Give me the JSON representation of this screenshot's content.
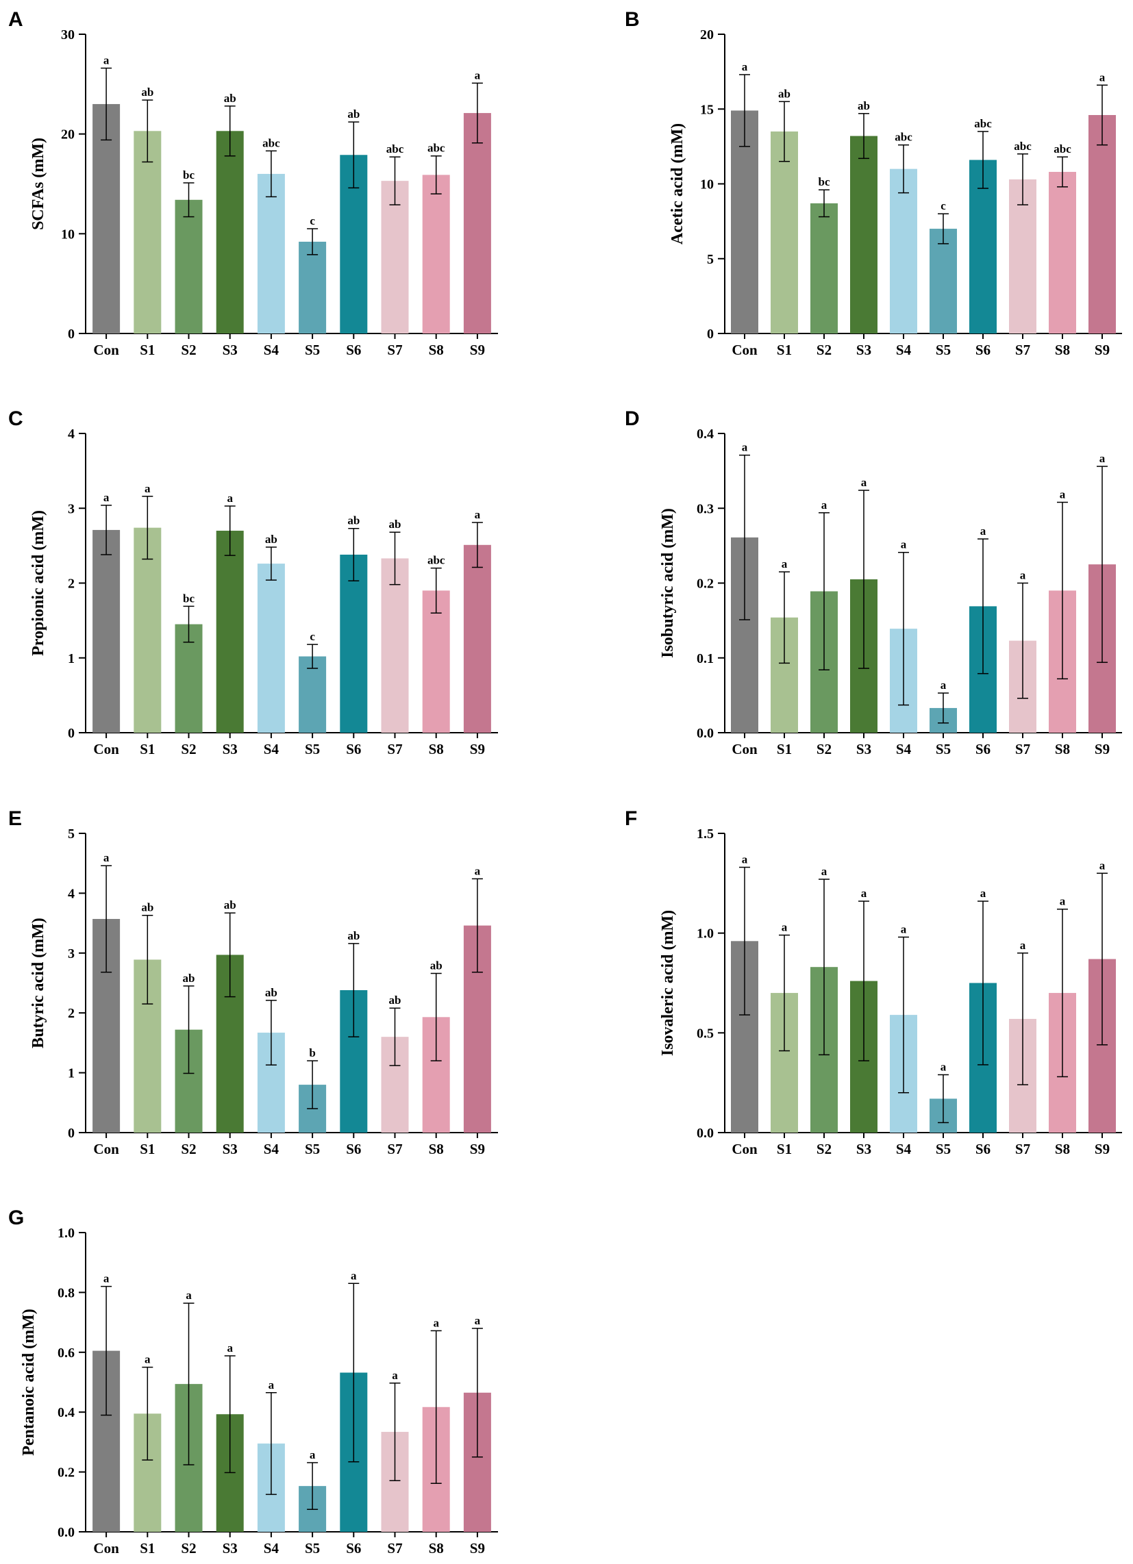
{
  "categories": [
    "Con",
    "S1",
    "S2",
    "S3",
    "S4",
    "S5",
    "S6",
    "S7",
    "S8",
    "S9"
  ],
  "colors": [
    "#7f7f7f",
    "#a8c191",
    "#6a9960",
    "#4a7a34",
    "#a5d4e5",
    "#5da5b3",
    "#138895",
    "#e6c4cb",
    "#e49fb1",
    "#c4778f"
  ],
  "chart_data": [
    {
      "panel": "A",
      "type": "bar",
      "title": "",
      "xlabel": "",
      "ylabel": "SCFAs (mM)",
      "ylim": [
        0,
        30
      ],
      "yticks": [
        "0",
        "10",
        "20",
        "30"
      ],
      "yticks_values": [
        0,
        10,
        20,
        30
      ],
      "values": [
        23.0,
        20.3,
        13.4,
        20.3,
        16.0,
        9.2,
        17.9,
        15.3,
        15.9,
        22.1
      ],
      "errors": [
        3.6,
        3.1,
        1.7,
        2.5,
        2.3,
        1.3,
        3.3,
        2.4,
        1.9,
        3.0
      ],
      "letters": [
        "a",
        "ab",
        "bc",
        "ab",
        "abc",
        "c",
        "ab",
        "abc",
        "abc",
        "a"
      ]
    },
    {
      "panel": "B",
      "type": "bar",
      "title": "",
      "xlabel": "",
      "ylabel": "Acetic acid (mM)",
      "ylim": [
        0,
        20
      ],
      "yticks": [
        "0",
        "5",
        "10",
        "15",
        "20"
      ],
      "yticks_values": [
        0,
        5,
        10,
        15,
        20
      ],
      "values": [
        14.9,
        13.5,
        8.7,
        13.2,
        11.0,
        7.0,
        11.6,
        10.3,
        10.8,
        14.6
      ],
      "errors": [
        2.4,
        2.0,
        0.9,
        1.5,
        1.6,
        1.0,
        1.9,
        1.7,
        1.0,
        2.0
      ],
      "letters": [
        "a",
        "ab",
        "bc",
        "ab",
        "abc",
        "c",
        "abc",
        "abc",
        "abc",
        "a"
      ]
    },
    {
      "panel": "C",
      "type": "bar",
      "title": "",
      "xlabel": "",
      "ylabel": "Propionic acid (mM)",
      "ylim": [
        0,
        4
      ],
      "yticks": [
        "0",
        "1",
        "2",
        "3",
        "4"
      ],
      "yticks_values": [
        0,
        1,
        2,
        3,
        4
      ],
      "values": [
        2.71,
        2.74,
        1.45,
        2.7,
        2.26,
        1.02,
        2.38,
        2.33,
        1.9,
        2.51
      ],
      "errors": [
        0.33,
        0.42,
        0.24,
        0.33,
        0.22,
        0.16,
        0.35,
        0.35,
        0.3,
        0.3
      ],
      "letters": [
        "a",
        "a",
        "bc",
        "a",
        "ab",
        "c",
        "ab",
        "ab",
        "abc",
        "a"
      ]
    },
    {
      "panel": "D",
      "type": "bar",
      "title": "",
      "xlabel": "",
      "ylabel": "Isobutyric acid (mM)",
      "ylim": [
        0,
        0.4
      ],
      "yticks": [
        "0.0",
        "0.1",
        "0.2",
        "0.3",
        "0.4"
      ],
      "yticks_values": [
        0,
        0.1,
        0.2,
        0.3,
        0.4
      ],
      "values": [
        0.261,
        0.154,
        0.189,
        0.205,
        0.139,
        0.033,
        0.169,
        0.123,
        0.19,
        0.225
      ],
      "errors": [
        0.11,
        0.061,
        0.105,
        0.119,
        0.102,
        0.02,
        0.09,
        0.077,
        0.118,
        0.131
      ],
      "letters": [
        "a",
        "a",
        "a",
        "a",
        "a",
        "a",
        "a",
        "a",
        "a",
        "a"
      ]
    },
    {
      "panel": "E",
      "type": "bar",
      "title": "",
      "xlabel": "",
      "ylabel": "Butyric acid (mM)",
      "ylim": [
        0,
        5
      ],
      "yticks": [
        "0",
        "1",
        "2",
        "3",
        "4",
        "5"
      ],
      "yticks_values": [
        0,
        1,
        2,
        3,
        4,
        5
      ],
      "values": [
        3.57,
        2.89,
        1.72,
        2.97,
        1.67,
        0.8,
        2.38,
        1.6,
        1.93,
        3.46
      ],
      "errors": [
        0.89,
        0.74,
        0.73,
        0.7,
        0.54,
        0.4,
        0.78,
        0.48,
        0.73,
        0.78
      ],
      "letters": [
        "a",
        "ab",
        "ab",
        "ab",
        "ab",
        "b",
        "ab",
        "ab",
        "ab",
        "a"
      ]
    },
    {
      "panel": "F",
      "type": "bar",
      "title": "",
      "xlabel": "",
      "ylabel": "Isovaleric acid (mM)",
      "ylim": [
        0,
        1.5
      ],
      "yticks": [
        "0.0",
        "0.5",
        "1.0",
        "1.5"
      ],
      "yticks_values": [
        0,
        0.5,
        1.0,
        1.5
      ],
      "values": [
        0.96,
        0.7,
        0.83,
        0.76,
        0.59,
        0.17,
        0.75,
        0.57,
        0.7,
        0.87
      ],
      "errors": [
        0.37,
        0.29,
        0.44,
        0.4,
        0.39,
        0.12,
        0.41,
        0.33,
        0.42,
        0.43
      ],
      "letters": [
        "a",
        "a",
        "a",
        "a",
        "a",
        "a",
        "a",
        "a",
        "a",
        "a"
      ]
    },
    {
      "panel": "G",
      "type": "bar",
      "title": "",
      "xlabel": "",
      "ylabel": "Pentanoic acid (mM)",
      "ylim": [
        0,
        1.0
      ],
      "yticks": [
        "0.0",
        "0.2",
        "0.4",
        "0.6",
        "0.8",
        "1.0"
      ],
      "yticks_values": [
        0,
        0.2,
        0.4,
        0.6,
        0.8,
        1.0
      ],
      "values": [
        0.605,
        0.395,
        0.494,
        0.393,
        0.295,
        0.153,
        0.532,
        0.334,
        0.417,
        0.465
      ],
      "errors": [
        0.215,
        0.155,
        0.27,
        0.195,
        0.17,
        0.078,
        0.298,
        0.163,
        0.255,
        0.215
      ],
      "letters": [
        "a",
        "a",
        "a",
        "a",
        "a",
        "a",
        "a",
        "a",
        "a",
        "a"
      ]
    }
  ]
}
